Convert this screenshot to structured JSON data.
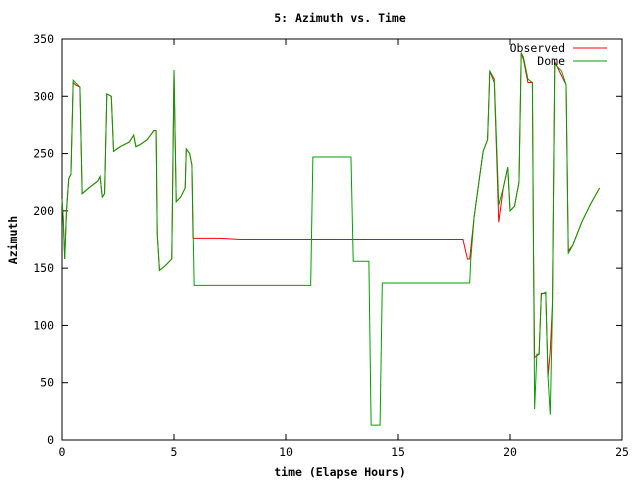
{
  "chart_data": {
    "type": "line",
    "title": "5: Azimuth vs. Time",
    "xlabel": "time (Elapse Hours)",
    "ylabel": "Azimuth",
    "xlim": [
      0,
      25
    ],
    "ylim": [
      0,
      350
    ],
    "xticks": [
      0,
      5,
      10,
      15,
      20,
      25
    ],
    "yticks": [
      0,
      50,
      100,
      150,
      200,
      250,
      300,
      350
    ],
    "grid": false,
    "legend": "top-right",
    "series": [
      {
        "name": "Observed",
        "color": "#ff0000",
        "points": [
          [
            0.0,
            210
          ],
          [
            0.05,
            195
          ],
          [
            0.12,
            158
          ],
          [
            0.2,
            200
          ],
          [
            0.3,
            228
          ],
          [
            0.4,
            232
          ],
          [
            0.5,
            312
          ],
          [
            0.6,
            310
          ],
          [
            0.8,
            308
          ],
          [
            0.9,
            215
          ],
          [
            1.2,
            220
          ],
          [
            1.6,
            226
          ],
          [
            1.7,
            230
          ],
          [
            1.8,
            212
          ],
          [
            1.9,
            215
          ],
          [
            2.0,
            302
          ],
          [
            2.2,
            300
          ],
          [
            2.3,
            252
          ],
          [
            2.6,
            256
          ],
          [
            3.0,
            260
          ],
          [
            3.2,
            266
          ],
          [
            3.3,
            256
          ],
          [
            3.5,
            258
          ],
          [
            3.8,
            262
          ],
          [
            4.1,
            270
          ],
          [
            4.2,
            270
          ],
          [
            4.25,
            180
          ],
          [
            4.35,
            148
          ],
          [
            4.6,
            152
          ],
          [
            4.9,
            158
          ],
          [
            5.0,
            322
          ],
          [
            5.1,
            208
          ],
          [
            5.3,
            212
          ],
          [
            5.5,
            220
          ],
          [
            5.55,
            254
          ],
          [
            5.7,
            250
          ],
          [
            5.8,
            240
          ],
          [
            5.85,
            176
          ],
          [
            6.0,
            176
          ],
          [
            7.0,
            176
          ],
          [
            8.0,
            175
          ],
          [
            10.0,
            175
          ],
          [
            12.0,
            175
          ],
          [
            14.0,
            175
          ],
          [
            16.0,
            175
          ],
          [
            17.5,
            175
          ],
          [
            17.9,
            175
          ],
          [
            18.1,
            158
          ],
          [
            18.2,
            158
          ],
          [
            18.4,
            195
          ],
          [
            18.8,
            252
          ],
          [
            19.0,
            262
          ],
          [
            19.1,
            322
          ],
          [
            19.3,
            312
          ],
          [
            19.5,
            190
          ],
          [
            19.7,
            220
          ],
          [
            19.9,
            238
          ],
          [
            20.0,
            200
          ],
          [
            20.2,
            204
          ],
          [
            20.4,
            225
          ],
          [
            20.5,
            338
          ],
          [
            20.6,
            332
          ],
          [
            20.8,
            312
          ],
          [
            21.0,
            312
          ],
          [
            21.05,
            165
          ],
          [
            21.1,
            72
          ],
          [
            21.3,
            75
          ],
          [
            21.4,
            128
          ],
          [
            21.6,
            128
          ],
          [
            21.7,
            55
          ],
          [
            21.8,
            78
          ],
          [
            21.9,
            120
          ],
          [
            22.0,
            330
          ],
          [
            22.3,
            318
          ],
          [
            22.5,
            310
          ],
          [
            22.6,
            165
          ],
          [
            22.8,
            170
          ],
          [
            23.2,
            190
          ],
          [
            23.6,
            206
          ],
          [
            24.0,
            220
          ]
        ]
      },
      {
        "name": "Dome",
        "color": "#00a000",
        "points": [
          [
            0.0,
            210
          ],
          [
            0.05,
            195
          ],
          [
            0.12,
            158
          ],
          [
            0.2,
            200
          ],
          [
            0.3,
            228
          ],
          [
            0.4,
            232
          ],
          [
            0.5,
            314
          ],
          [
            0.6,
            312
          ],
          [
            0.8,
            308
          ],
          [
            0.9,
            215
          ],
          [
            1.2,
            220
          ],
          [
            1.6,
            226
          ],
          [
            1.7,
            230
          ],
          [
            1.8,
            212
          ],
          [
            1.9,
            215
          ],
          [
            2.0,
            302
          ],
          [
            2.2,
            300
          ],
          [
            2.3,
            252
          ],
          [
            2.6,
            256
          ],
          [
            3.0,
            260
          ],
          [
            3.2,
            266
          ],
          [
            3.3,
            256
          ],
          [
            3.5,
            258
          ],
          [
            3.8,
            262
          ],
          [
            4.1,
            270
          ],
          [
            4.2,
            270
          ],
          [
            4.25,
            180
          ],
          [
            4.35,
            148
          ],
          [
            4.6,
            152
          ],
          [
            4.9,
            158
          ],
          [
            5.0,
            323
          ],
          [
            5.1,
            208
          ],
          [
            5.3,
            212
          ],
          [
            5.5,
            220
          ],
          [
            5.55,
            254
          ],
          [
            5.7,
            250
          ],
          [
            5.8,
            240
          ],
          [
            5.9,
            135
          ],
          [
            7.0,
            135
          ],
          [
            9.0,
            135
          ],
          [
            10.0,
            135
          ],
          [
            11.1,
            135
          ],
          [
            11.2,
            247
          ],
          [
            12.0,
            247
          ],
          [
            12.9,
            247
          ],
          [
            13.0,
            156
          ],
          [
            13.7,
            156
          ],
          [
            13.8,
            13
          ],
          [
            14.2,
            13
          ],
          [
            14.3,
            137
          ],
          [
            15.0,
            137
          ],
          [
            16.0,
            137
          ],
          [
            17.0,
            137
          ],
          [
            18.2,
            137
          ],
          [
            18.25,
            158
          ],
          [
            18.4,
            195
          ],
          [
            18.8,
            252
          ],
          [
            19.0,
            262
          ],
          [
            19.1,
            322
          ],
          [
            19.3,
            315
          ],
          [
            19.5,
            205
          ],
          [
            19.7,
            220
          ],
          [
            19.9,
            238
          ],
          [
            20.0,
            200
          ],
          [
            20.2,
            204
          ],
          [
            20.4,
            225
          ],
          [
            20.5,
            338
          ],
          [
            20.6,
            334
          ],
          [
            20.8,
            315
          ],
          [
            21.0,
            312
          ],
          [
            21.05,
            165
          ],
          [
            21.1,
            27
          ],
          [
            21.2,
            75
          ],
          [
            21.3,
            75
          ],
          [
            21.4,
            127
          ],
          [
            21.6,
            129
          ],
          [
            21.7,
            55
          ],
          [
            21.8,
            22
          ],
          [
            21.9,
            120
          ],
          [
            22.0,
            328
          ],
          [
            22.3,
            322
          ],
          [
            22.5,
            310
          ],
          [
            22.6,
            163
          ],
          [
            22.8,
            170
          ],
          [
            23.2,
            190
          ],
          [
            23.6,
            206
          ],
          [
            24.0,
            220
          ]
        ]
      }
    ]
  }
}
